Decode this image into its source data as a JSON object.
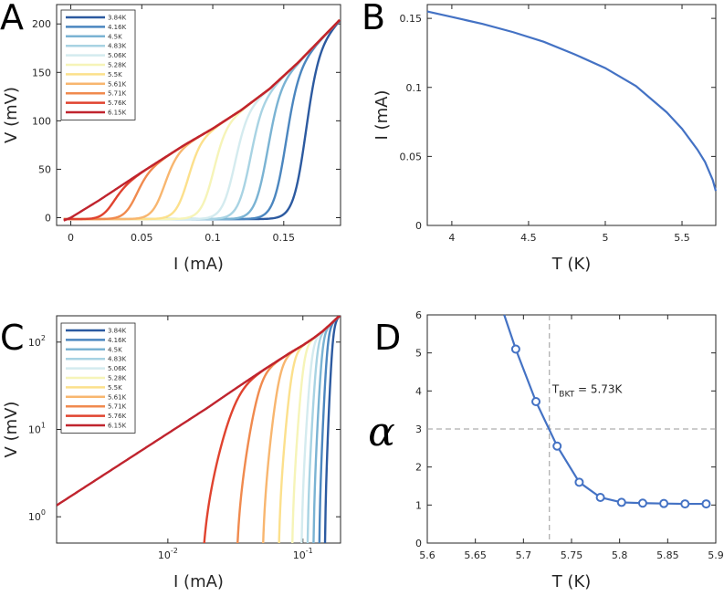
{
  "colors": {
    "fit_line": "#4472C4",
    "dash": "#999999",
    "series": [
      "#2c5aa0",
      "#4b86bf",
      "#7ab3d3",
      "#a8d3e3",
      "#d4ebef",
      "#f6f4b8",
      "#fce08c",
      "#f8b66f",
      "#f08a4e",
      "#e0432f",
      "#c0242e"
    ]
  },
  "legend_labels": [
    "3.84K",
    "4.16K",
    "4.5K",
    "4.83K",
    "5.06K",
    "5.28K",
    "5.5K",
    "5.61K",
    "5.71K",
    "5.76K",
    "6.15K"
  ],
  "chart_data": [
    {
      "panel": "A",
      "type": "line",
      "xlabel": "I (mA)",
      "ylabel": "V (mV)",
      "xlim": [
        -0.01,
        0.19
      ],
      "ylim": [
        -8,
        220
      ],
      "xticks": [
        0,
        0.05,
        0.1,
        0.15
      ],
      "xtick_labels": [
        "0",
        "0.05",
        "0.1",
        "0.15"
      ],
      "yticks": [
        0,
        50,
        100,
        150,
        200
      ],
      "ytick_labels": [
        "0",
        "50",
        "100",
        "150",
        "200"
      ],
      "legend": "top-left",
      "normal_state": {
        "x": [
          -0.005,
          0,
          0.02,
          0.05,
          0.08,
          0.1,
          0.12,
          0.14,
          0.16,
          0.19
        ],
        "y": [
          -3,
          0,
          18,
          47,
          75,
          92,
          111,
          133,
          160,
          205
        ]
      },
      "series": [
        {
          "name": "3.84K",
          "critical_current": 0.165,
          "max_v": 188
        },
        {
          "name": "4.16K",
          "critical_current": 0.151,
          "max_v": 190
        },
        {
          "name": "4.5K",
          "critical_current": 0.138,
          "max_v": 192
        },
        {
          "name": "4.83K",
          "critical_current": 0.126,
          "max_v": 194
        },
        {
          "name": "5.06K",
          "critical_current": 0.115,
          "max_v": 196
        },
        {
          "name": "5.28K",
          "critical_current": 0.1,
          "max_v": 197
        },
        {
          "name": "5.5K",
          "critical_current": 0.082,
          "max_v": 199
        },
        {
          "name": "5.61K",
          "critical_current": 0.065,
          "max_v": 200
        },
        {
          "name": "5.71K",
          "critical_current": 0.045,
          "max_v": 202
        },
        {
          "name": "5.76K",
          "critical_current": 0.028,
          "max_v": 203
        },
        {
          "name": "6.15K",
          "critical_current": 0.0,
          "max_v": 205
        }
      ]
    },
    {
      "panel": "B",
      "type": "line",
      "xlabel": "T (K)",
      "ylabel": "I (mA)",
      "xlim": [
        3.84,
        5.72
      ],
      "ylim": [
        0,
        0.16
      ],
      "xticks": [
        4,
        4.5,
        5,
        5.5
      ],
      "xtick_labels": [
        "4",
        "4.5",
        "5",
        "5.5"
      ],
      "yticks": [
        0,
        0.05,
        0.1,
        0.15
      ],
      "ytick_labels": [
        "0",
        "0.05",
        "0.1",
        "0.15"
      ],
      "x": [
        3.84,
        4.0,
        4.2,
        4.4,
        4.6,
        4.8,
        5.0,
        5.2,
        5.4,
        5.5,
        5.6,
        5.65,
        5.7,
        5.72
      ],
      "y": [
        0.155,
        0.151,
        0.146,
        0.14,
        0.133,
        0.124,
        0.114,
        0.101,
        0.082,
        0.07,
        0.055,
        0.046,
        0.033,
        0.025
      ]
    },
    {
      "panel": "C",
      "type": "line",
      "scale": "log-log",
      "xlabel": "I (mA)",
      "ylabel": "V (mV)",
      "xlim": [
        0.0015,
        0.19
      ],
      "ylim": [
        0.5,
        200
      ],
      "xticks": [
        0.01,
        0.1
      ],
      "xtick_labels": [
        "10",
        "10"
      ],
      "xtick_exponents": [
        "-2",
        "-1"
      ],
      "yticks": [
        1,
        10,
        100
      ],
      "ytick_labels": [
        "10",
        "10",
        "10"
      ],
      "ytick_exponents": [
        "0",
        "1",
        "2"
      ],
      "legend": "top-left"
    },
    {
      "panel": "D",
      "type": "line",
      "xlabel": "T (K)",
      "ylabel": "α",
      "xlim": [
        5.6,
        5.9
      ],
      "ylim": [
        0,
        6
      ],
      "xticks": [
        5.6,
        5.65,
        5.7,
        5.75,
        5.8,
        5.85,
        5.9
      ],
      "xtick_labels": [
        "5.6",
        "5.65",
        "5.7",
        "5.75",
        "5.8",
        "5.85",
        "5.9"
      ],
      "yticks": [
        0,
        1,
        2,
        3,
        4,
        5,
        6
      ],
      "ytick_labels": [
        "0",
        "1",
        "2",
        "3",
        "4",
        "5",
        "6"
      ],
      "x": [
        5.692,
        5.713,
        5.735,
        5.758,
        5.78,
        5.802,
        5.824,
        5.846,
        5.868,
        5.89
      ],
      "y": [
        5.1,
        3.72,
        2.55,
        1.6,
        1.2,
        1.07,
        1.05,
        1.04,
        1.03,
        1.03
      ],
      "curve_start": {
        "x": 5.68,
        "y": 6.0
      },
      "vline_x": 5.727,
      "hline_y": 3,
      "annotation": {
        "main": "T",
        "sub": "BKT",
        "rest": " = 5.73K"
      }
    }
  ]
}
